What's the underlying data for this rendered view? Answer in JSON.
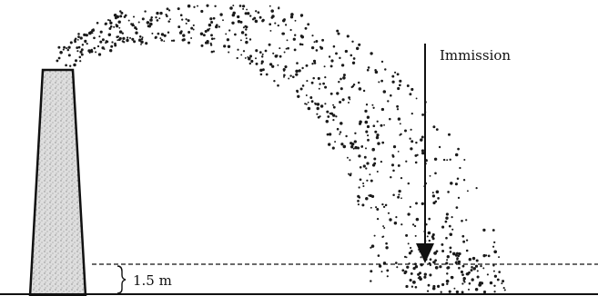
{
  "labels": {
    "immission": "Immission",
    "height": "1.5 m"
  },
  "colors": {
    "ink": "#111111",
    "stack_fill": "#d9d9d9",
    "particle": "#1a1a1a"
  },
  "icons": {
    "chimney": "chimney-icon",
    "arrow": "arrow-down-icon",
    "brace": "brace-icon"
  }
}
